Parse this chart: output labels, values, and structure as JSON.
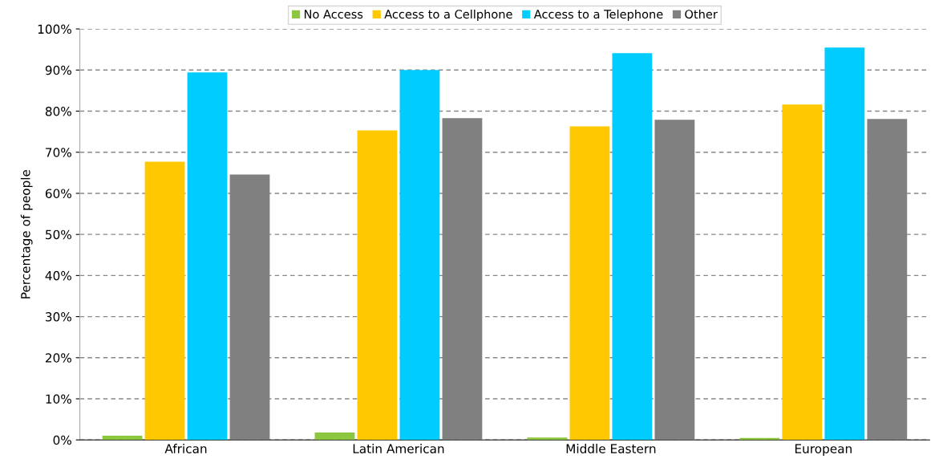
{
  "chart_data": {
    "type": "bar",
    "ylabel": "Percentage of people",
    "categories": [
      "African",
      "Latin American",
      "Middle Eastern",
      "European"
    ],
    "series": [
      {
        "name": "No Access",
        "color": "#8dc63f",
        "values": [
          1.0,
          1.8,
          0.6,
          0.5
        ]
      },
      {
        "name": "Access to a Cellphone",
        "color": "#ffc800",
        "values": [
          67.7,
          75.3,
          76.3,
          81.6
        ]
      },
      {
        "name": "Access to a Telephone",
        "color": "#00ccff",
        "values": [
          89.4,
          90.0,
          94.1,
          95.5
        ]
      },
      {
        "name": "Other",
        "color": "#808080",
        "values": [
          64.6,
          78.3,
          77.9,
          78.1
        ]
      }
    ],
    "ylim": [
      0,
      100
    ],
    "yticks": [
      {
        "value": 0,
        "label": "0%"
      },
      {
        "value": 10,
        "label": "10%"
      },
      {
        "value": 20,
        "label": "20%"
      },
      {
        "value": 30,
        "label": "30%"
      },
      {
        "value": 40,
        "label": "40%"
      },
      {
        "value": 50,
        "label": "50%"
      },
      {
        "value": 60,
        "label": "60%"
      },
      {
        "value": 70,
        "label": "70%"
      },
      {
        "value": 80,
        "label": "80%"
      },
      {
        "value": 90,
        "label": "90%"
      },
      {
        "value": 100,
        "label": "100%"
      }
    ],
    "grid": "y",
    "legend": "top"
  }
}
